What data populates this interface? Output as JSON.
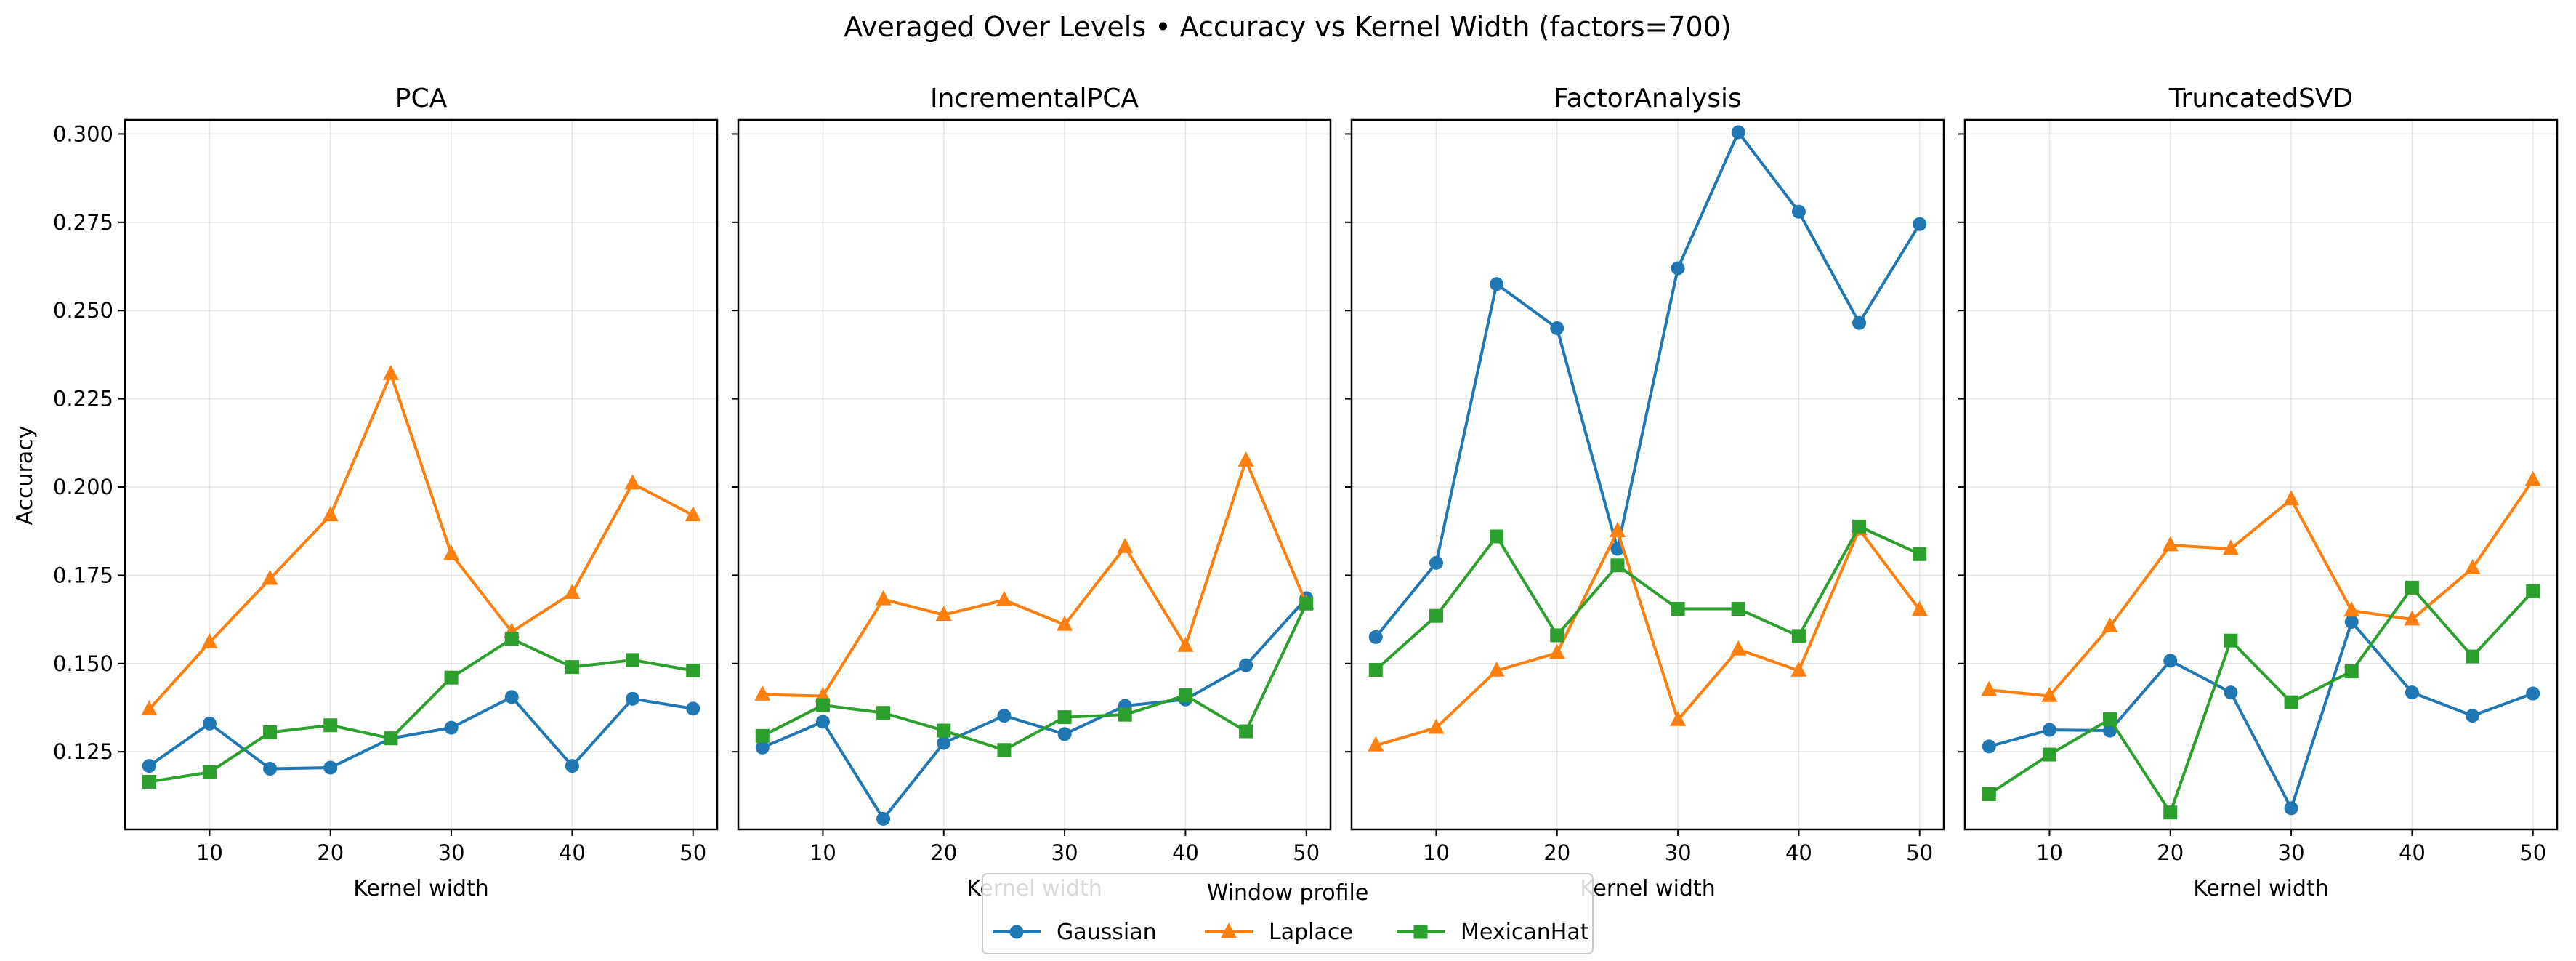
{
  "chart_data": {
    "type": "line",
    "title": "Averaged Over Levels • Accuracy vs Kernel Width (factors=700)",
    "ylabel": "Accuracy",
    "xlabel": "Kernel width",
    "x": [
      5,
      10,
      15,
      20,
      25,
      30,
      35,
      40,
      45,
      50
    ],
    "xticks": [
      10,
      20,
      30,
      40,
      50
    ],
    "yticks": [
      0.125,
      0.15,
      0.175,
      0.2,
      0.225,
      0.25,
      0.275,
      0.3
    ],
    "xlim": [
      3,
      52
    ],
    "ylim": [
      0.103,
      0.304
    ],
    "grid": true,
    "sharey": true,
    "legend": {
      "title": "Window profile",
      "placement": "bottom-center",
      "entries": [
        {
          "name": "Gaussian",
          "color": "#1f77b4",
          "marker": "circle"
        },
        {
          "name": "Laplace",
          "color": "#ff7f0e",
          "marker": "triangle"
        },
        {
          "name": "MexicanHat",
          "color": "#2ca02c",
          "marker": "square"
        }
      ]
    },
    "panels": [
      {
        "title": "PCA",
        "series": [
          {
            "name": "Gaussian",
            "values": [
              0.121,
              0.133,
              0.1202,
              0.1205,
              0.1288,
              0.1318,
              0.1405,
              0.121,
              0.14,
              0.1372
            ]
          },
          {
            "name": "Laplace",
            "values": [
              0.137,
              0.156,
              0.174,
              0.192,
              0.232,
              0.181,
              0.159,
              0.17,
              0.201,
              0.192
            ]
          },
          {
            "name": "MexicanHat",
            "values": [
              0.1165,
              0.1192,
              0.1305,
              0.1325,
              0.1288,
              0.146,
              0.157,
              0.149,
              0.151,
              0.148
            ]
          }
        ]
      },
      {
        "title": "IncrementalPCA",
        "series": [
          {
            "name": "Gaussian",
            "values": [
              0.1262,
              0.1335,
              0.106,
              0.1275,
              0.1352,
              0.13,
              0.138,
              0.1398,
              0.1495,
              0.1685
            ]
          },
          {
            "name": "Laplace",
            "values": [
              0.1412,
              0.1408,
              0.1682,
              0.1638,
              0.168,
              0.161,
              0.183,
              0.155,
              0.2075,
              0.167
            ]
          },
          {
            "name": "MexicanHat",
            "values": [
              0.1295,
              0.1382,
              0.136,
              0.131,
              0.1255,
              0.1348,
              0.1355,
              0.141,
              0.1308,
              0.167
            ]
          }
        ]
      },
      {
        "title": "FactorAnalysis",
        "series": [
          {
            "name": "Gaussian",
            "values": [
              0.1575,
              0.1785,
              0.2575,
              0.245,
              0.1825,
              0.262,
              0.3005,
              0.278,
              0.2465,
              0.2745
            ]
          },
          {
            "name": "Laplace",
            "values": [
              0.1268,
              0.1318,
              0.148,
              0.153,
              0.1875,
              0.134,
              0.154,
              0.148,
              0.188,
              0.1652
            ]
          },
          {
            "name": "MexicanHat",
            "values": [
              0.1482,
              0.1635,
              0.186,
              0.158,
              0.1778,
              0.1655,
              0.1655,
              0.1578,
              0.1888,
              0.181
            ]
          }
        ]
      },
      {
        "title": "TruncatedSVD",
        "series": [
          {
            "name": "Gaussian",
            "values": [
              0.1265,
              0.1312,
              0.131,
              0.1508,
              0.1418,
              0.109,
              0.1618,
              0.1418,
              0.1352,
              0.1415
            ]
          },
          {
            "name": "Laplace",
            "values": [
              0.1425,
              0.1408,
              0.1605,
              0.1835,
              0.1825,
              0.1965,
              0.165,
              0.1625,
              0.177,
              0.202
            ]
          },
          {
            "name": "MexicanHat",
            "values": [
              0.113,
              0.1242,
              0.1342,
              0.1078,
              0.1565,
              0.139,
              0.1478,
              0.1715,
              0.152,
              0.1705
            ]
          }
        ]
      }
    ]
  }
}
